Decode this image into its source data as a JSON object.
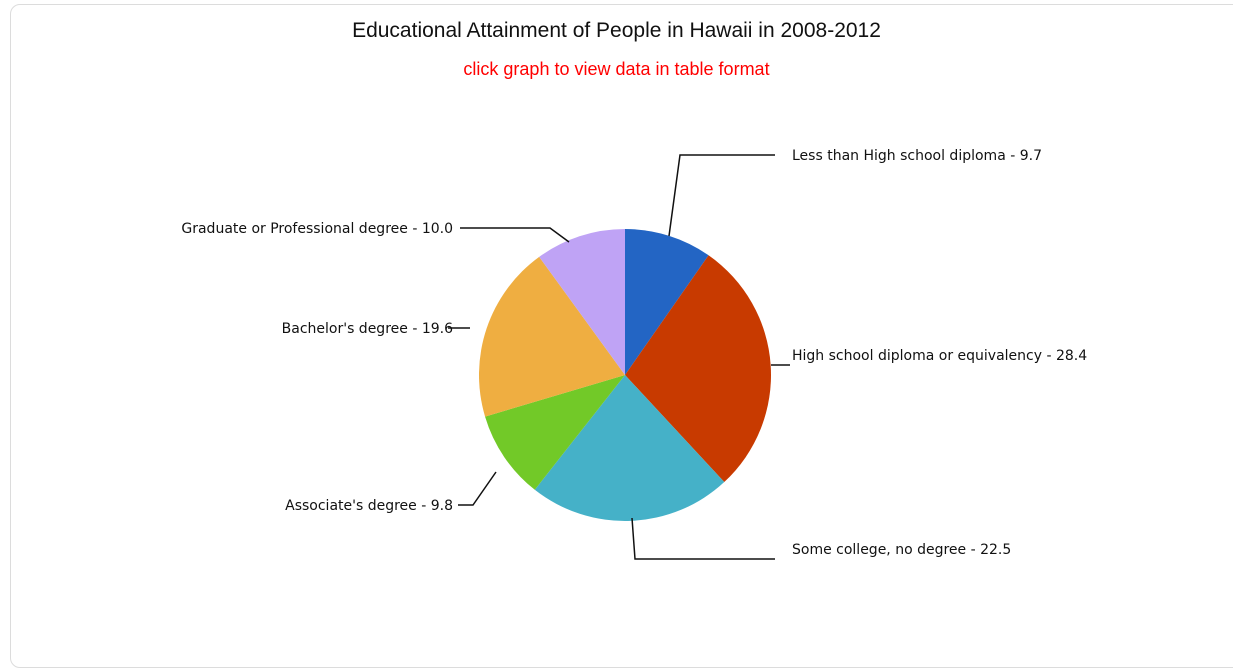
{
  "chart_data": {
    "type": "pie",
    "title": "Educational Attainment of People in Hawaii in 2008-2012",
    "subtitle": "click graph to view data in table format",
    "categories": [
      "Less than High school diploma",
      "High school diploma or equivalency",
      "Some college, no degree",
      "Associate's degree",
      "Bachelor's degree",
      "Graduate or Professional degree"
    ],
    "values": [
      9.7,
      28.4,
      22.5,
      9.8,
      19.6,
      10.0
    ],
    "labels": [
      "Less than High school diploma - 9.7",
      "High school diploma or equivalency - 28.4",
      "Some college, no degree - 22.5",
      "Associate's degree - 9.8",
      "Bachelor's degree - 19.6",
      "Graduate or Professional degree - 10.0"
    ],
    "colors": [
      "#2365c4",
      "#c83a00",
      "#45b1c8",
      "#72c928",
      "#efae41",
      "#bfa3f5"
    ],
    "legend": "none"
  }
}
